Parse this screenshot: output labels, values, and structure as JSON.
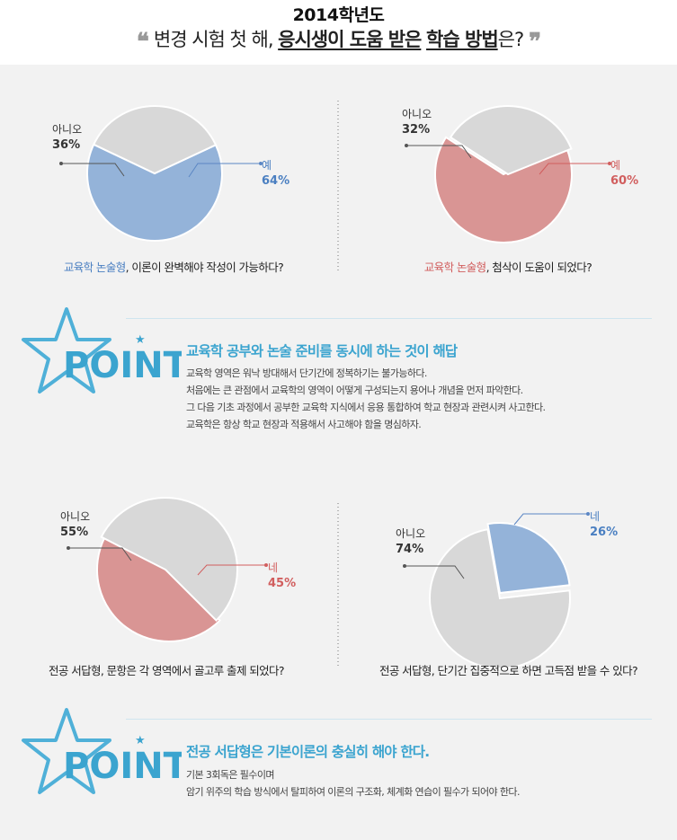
{
  "header": {
    "year": "2014학년도",
    "question_prefix": "변경 시험 첫 해, ",
    "question_emphasis_1": "응시생이 도움 받은",
    "question_space": " ",
    "question_emphasis_2": "학습 방법",
    "question_suffix": "은?",
    "open_quote": "❝",
    "close_quote": "❞"
  },
  "chart_data": [
    {
      "type": "pie",
      "slices": [
        {
          "label": "예",
          "value": 64,
          "display": "64%",
          "color": "#94b3d9"
        },
        {
          "label": "아니오",
          "value": 36,
          "display": "36%",
          "color": "#d8d8d8"
        }
      ],
      "caption_colored": "교육학 논술형",
      "caption_rest": ", 이론이 완벽해야 작성이 가능하다?",
      "caption_color": "#4a7fc1"
    },
    {
      "type": "pie",
      "slices": [
        {
          "label": "예",
          "value": 60,
          "display": "60%",
          "color": "#d99594"
        },
        {
          "label": "아니오",
          "value": 32,
          "display": "32%",
          "color": "#d8d8d8"
        }
      ],
      "caption_colored": "교육학 논술형",
      "caption_rest": ", 첨삭이 도움이 되었다?",
      "caption_color": "#d15e5e"
    },
    {
      "type": "pie",
      "slices": [
        {
          "label": "네",
          "value": 45,
          "display": "45%",
          "color": "#d99594"
        },
        {
          "label": "아니오",
          "value": 55,
          "display": "55%",
          "color": "#d8d8d8"
        }
      ],
      "caption_colored": "",
      "caption_rest": "전공 서답형, 문항은 각 영역에서 골고루 출제 되었다?",
      "caption_color": "#222222"
    },
    {
      "type": "pie",
      "slices": [
        {
          "label": "네",
          "value": 26,
          "display": "26%",
          "color": "#94b3d9"
        },
        {
          "label": "아니오",
          "value": 74,
          "display": "74%",
          "color": "#d8d8d8"
        }
      ],
      "caption_colored": "",
      "caption_rest": "전공 서답형, 단기간 집중적으로 하면 고득점 받을 수 있다?",
      "caption_color": "#222222"
    }
  ],
  "points": [
    {
      "badge": "POINT",
      "headline": "교육학 공부와 논술 준비를 동시에 하는 것이 해답",
      "lines": [
        "교육학 영역은 워낙 방대해서 단기간에 정복하기는 불가능하다.",
        "처음에는 큰 관점에서 교육학의  영역이 어떻게 구성되는지 용어나 개념을 먼저 파악한다.",
        "그 다음 기초 과정에서 공부한 교육학 지식에서 응용 통합하여 학교 현장과 관련시켜 사고한다.",
        "교육학은 항상 학교 현장과 적용해서 사고해야 함을 명심하자."
      ]
    },
    {
      "badge": "POINT",
      "headline": "전공 서답형은 기본이론의 충실히 해야 한다.",
      "lines": [
        "기본 3회독은 필수이며",
        "암기 위주의 학습 방식에서 탈피하여 이론의 구조화, 체계화 연습이 필수가 되어야 한다."
      ]
    }
  ],
  "colors": {
    "blue_slice": "#94b3d9",
    "red_slice": "#d99594",
    "gray_slice": "#d8d8d8",
    "blue_text": "#4a7fc1",
    "red_text": "#d15e5e",
    "point_blue": "#3ba4cf"
  }
}
